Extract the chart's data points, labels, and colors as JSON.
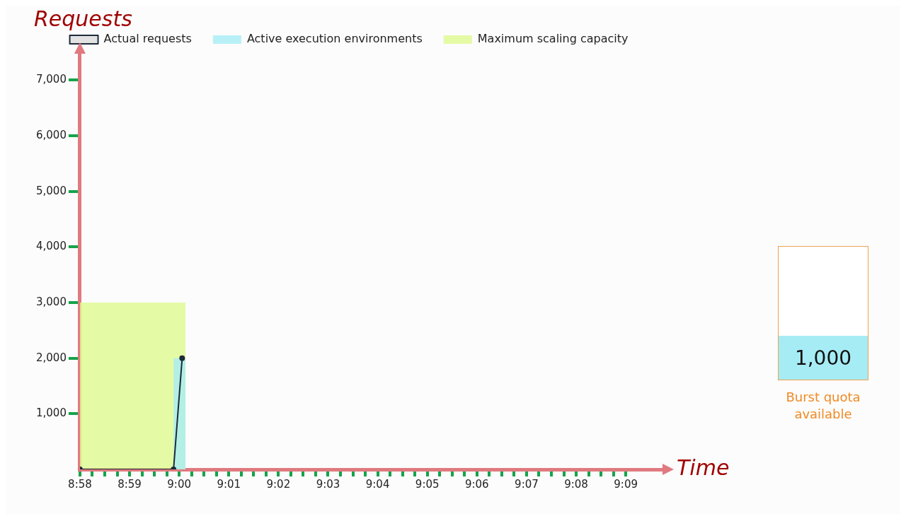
{
  "chart_data": [
    {
      "type": "area",
      "xlabel": "Time",
      "ylabel": "Requests",
      "legend": "top",
      "series": [
        {
          "name": "Actual requests",
          "type": "line",
          "color": "#1d2b3a",
          "marker": "circle",
          "x": [
            8.96667,
            8.9981,
            9.001
          ],
          "values": [
            0,
            0,
            2000
          ]
        },
        {
          "name": "Active execution environments",
          "type": "area",
          "color": "#a6ecf5",
          "x": [
            8.9981,
            9.00217
          ],
          "values": [
            2000,
            2000
          ]
        },
        {
          "name": "Maximum scaling capacity",
          "type": "area",
          "color": "#dff98f",
          "x": [
            8.96667,
            9.00217
          ],
          "values": [
            3000,
            3000
          ]
        }
      ],
      "xlim": [
        8.96667,
        9.1628
      ],
      "ylim": [
        0,
        7500
      ],
      "xticks": [
        {
          "value": 8.96667,
          "label": "8:58"
        },
        {
          "value": 8.97083,
          "label": null
        },
        {
          "value": 8.975,
          "label": null
        },
        {
          "value": 8.97917,
          "label": null
        },
        {
          "value": 8.98333,
          "label": "8:59"
        },
        {
          "value": 8.9875,
          "label": null
        },
        {
          "value": 8.99167,
          "label": null
        },
        {
          "value": 8.99583,
          "label": null
        },
        {
          "value": 9.0,
          "label": "9:00"
        },
        {
          "value": 9.00417,
          "label": null
        },
        {
          "value": 9.00833,
          "label": null
        },
        {
          "value": 9.0125,
          "label": null
        },
        {
          "value": 9.01667,
          "label": "9:01"
        },
        {
          "value": 9.02083,
          "label": null
        },
        {
          "value": 9.025,
          "label": null
        },
        {
          "value": 9.02917,
          "label": null
        },
        {
          "value": 9.03333,
          "label": "9:02"
        },
        {
          "value": 9.0375,
          "label": null
        },
        {
          "value": 9.04167,
          "label": null
        },
        {
          "value": 9.04583,
          "label": null
        },
        {
          "value": 9.05,
          "label": "9:03"
        },
        {
          "value": 9.05417,
          "label": null
        },
        {
          "value": 9.05833,
          "label": null
        },
        {
          "value": 9.0625,
          "label": null
        },
        {
          "value": 9.06667,
          "label": "9:04"
        },
        {
          "value": 9.07083,
          "label": null
        },
        {
          "value": 9.075,
          "label": null
        },
        {
          "value": 9.07917,
          "label": null
        },
        {
          "value": 9.08333,
          "label": "9:05"
        },
        {
          "value": 9.0875,
          "label": null
        },
        {
          "value": 9.09167,
          "label": null
        },
        {
          "value": 9.09583,
          "label": null
        },
        {
          "value": 9.1,
          "label": "9:06"
        },
        {
          "value": 9.10417,
          "label": null
        },
        {
          "value": 9.10833,
          "label": null
        },
        {
          "value": 9.1125,
          "label": null
        },
        {
          "value": 9.11667,
          "label": "9:07"
        },
        {
          "value": 9.12083,
          "label": null
        },
        {
          "value": 9.125,
          "label": null
        },
        {
          "value": 9.12917,
          "label": null
        },
        {
          "value": 9.13333,
          "label": "9:08"
        },
        {
          "value": 9.1375,
          "label": null
        },
        {
          "value": 9.14167,
          "label": null
        },
        {
          "value": 9.14583,
          "label": null
        },
        {
          "value": 9.15,
          "label": "9:09"
        }
      ],
      "yticks": [
        {
          "value": 1000,
          "label": "1,000"
        },
        {
          "value": 2000,
          "label": "2,000"
        },
        {
          "value": 3000,
          "label": "3,000"
        },
        {
          "value": 4000,
          "label": "4,000"
        },
        {
          "value": 5000,
          "label": "5,000"
        },
        {
          "value": 6000,
          "label": "6,000"
        },
        {
          "value": 7000,
          "label": "7,000"
        }
      ]
    },
    {
      "type": "other",
      "annotations": [
        "1,000",
        "Burst quota available"
      ]
    }
  ]
}
